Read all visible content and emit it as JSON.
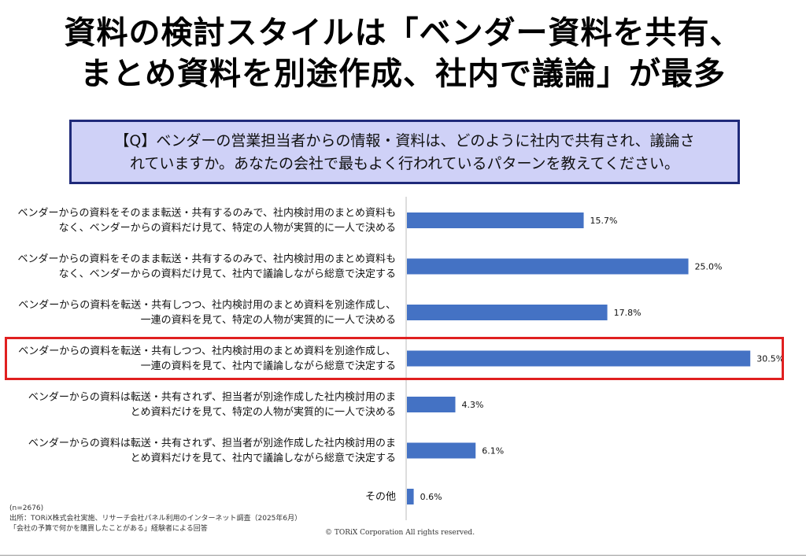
{
  "header": {
    "title_line1": "資料の検討スタイルは「ベンダー資料を共有、",
    "title_line2": "まとめ資料を別途作成、社内で議論」が最多"
  },
  "question": {
    "line1": "【Q】ベンダーの営業担当者からの情報・資料は、どのように社内で共有され、議論さ",
    "line2": "れていますか。あなたの会社で最もよく行われているパターンを教えてください。"
  },
  "chart_data": {
    "type": "bar",
    "orientation": "horizontal",
    "categories": [
      [
        "ベンダーからの資料をそのまま転送・共有するのみで、社内検討用のまとめ資料も",
        "なく、ベンダーからの資料だけ見て、特定の人物が実質的に一人で決める"
      ],
      [
        "ベンダーからの資料をそのまま転送・共有するのみで、社内検討用のまとめ資料も",
        "なく、ベンダーからの資料だけ見て、社内で議論しながら総意で決定する"
      ],
      [
        "ベンダーからの資料を転送・共有しつつ、社内検討用のまとめ資料を別途作成し、",
        "一連の資料を見て、特定の人物が実質的に一人で決める"
      ],
      [
        "ベンダーからの資料を転送・共有しつつ、社内検討用のまとめ資料を別途作成し、",
        "一連の資料を見て、社内で議論しながら総意で決定する"
      ],
      [
        "ベンダーからの資料は転送・共有されず、担当者が別途作成した社内検討用のま",
        "とめ資料だけを見て、特定の人物が実質的に一人で決める"
      ],
      [
        "ベンダーからの資料は転送・共有されず、担当者が別途作成した社内検討用のま",
        "とめ資料だけを見て、社内で議論しながら総意で決定する"
      ],
      [
        "その他"
      ]
    ],
    "values": [
      15.7,
      25.0,
      17.8,
      30.5,
      4.3,
      6.1,
      0.6
    ],
    "value_labels": [
      "15.7%",
      "25.0%",
      "17.8%",
      "30.5%",
      "4.3%",
      "6.1%",
      "0.6%"
    ],
    "xlim": [
      0,
      33
    ],
    "highlighted_index": 3,
    "bar_color": "#4472c4",
    "highlight_color": "#e02020",
    "grid": false,
    "legend": "none"
  },
  "footer": {
    "sample": "(n=2676)",
    "source": "出所：TORiX株式会社実施、リサーチ会社パネル利用のインターネット調査（2025年6月）",
    "respondents": "「会社の予算で何かを購買したことがある」経験者による回答",
    "copyright": "© TORiX Corporation All rights reserved."
  }
}
